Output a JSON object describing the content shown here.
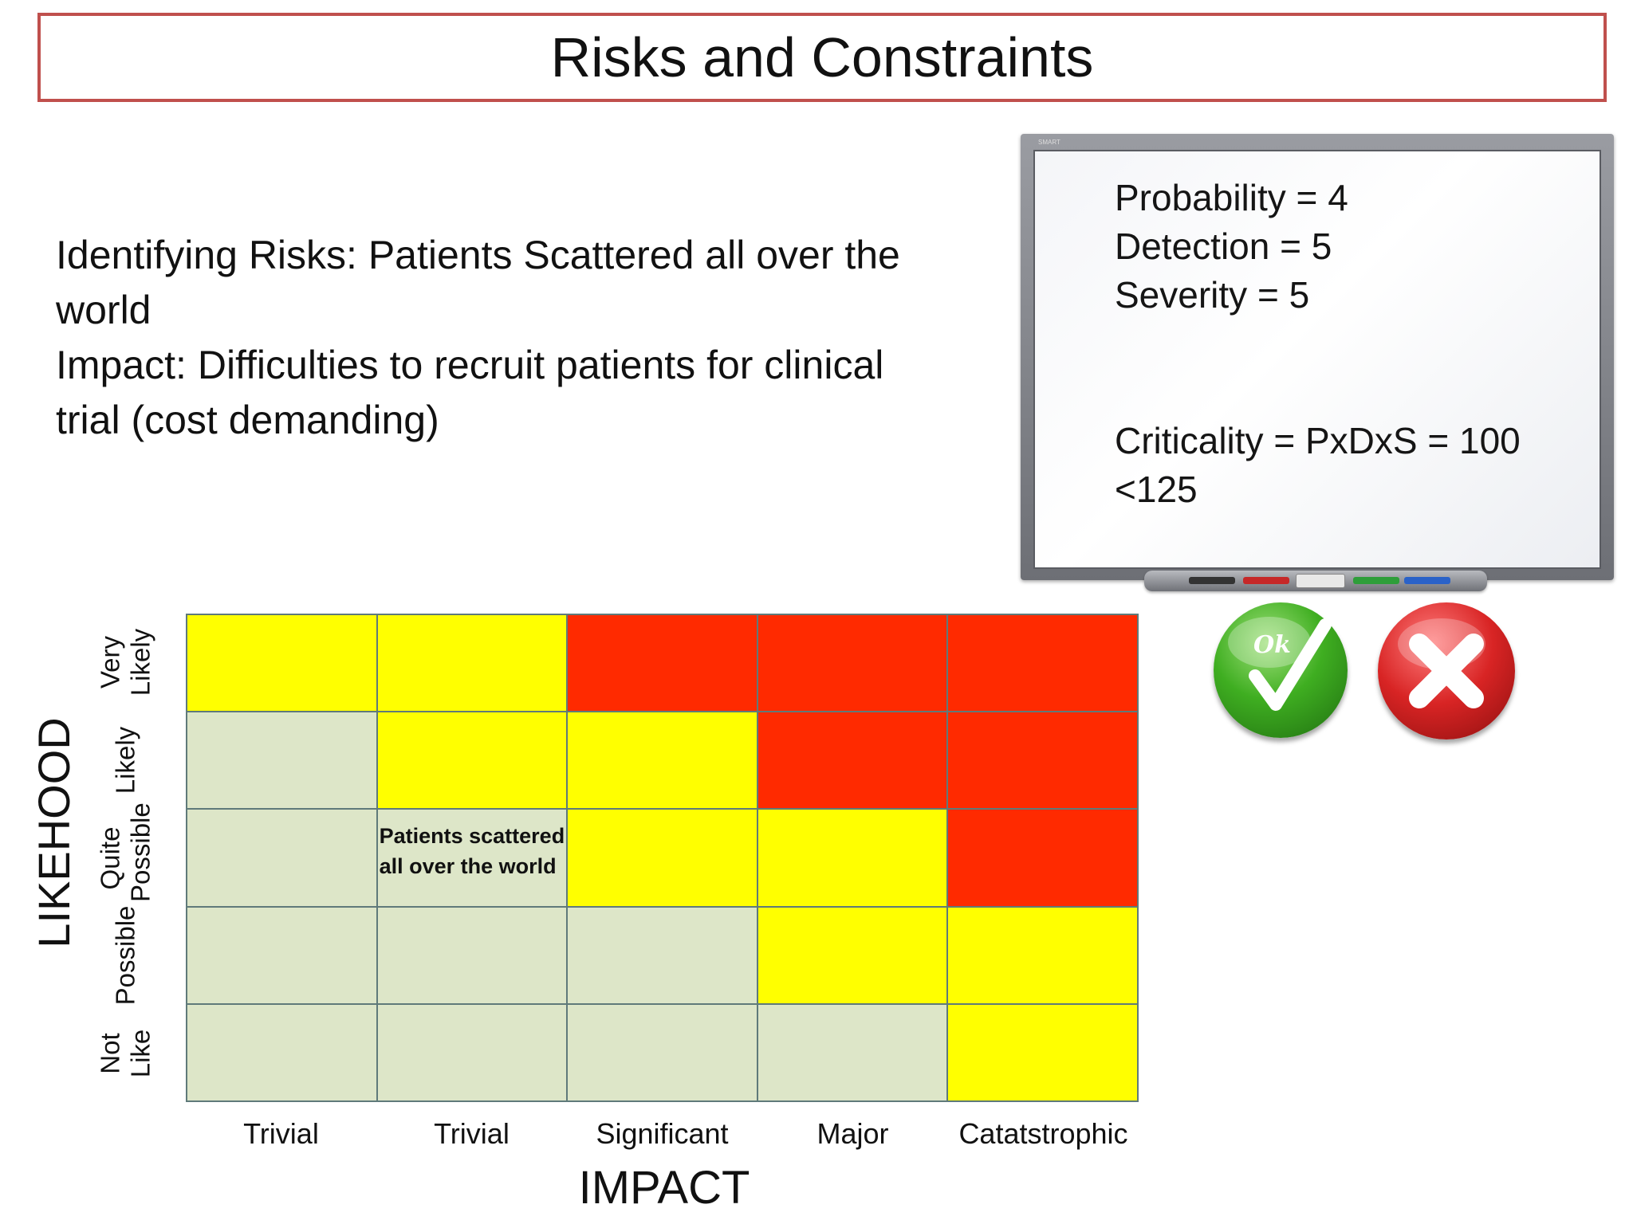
{
  "title": "Risks and Constraints",
  "risk_text": {
    "line1": "Identifying Risks: Patients Scattered all over the",
    "line2": "world",
    "line3": "Impact: Difficulties to recruit patients for clinical",
    "line4": "trial (cost demanding)"
  },
  "whiteboard": {
    "brand": "SMART",
    "probability": "Probability = 4",
    "detection": "Detection = 5",
    "severity": "Severity = 5",
    "criticality": "Criticality = PxDxS = 100",
    "threshold": "<125"
  },
  "buttons": {
    "ok_label": "Ok",
    "ok_icon": "ok-check-icon",
    "reject_icon": "red-x-icon"
  },
  "matrix": {
    "y_axis_label": "LIKEHOOD",
    "x_axis_label": "IMPACT",
    "row_labels": [
      "Very Likely",
      "Likely",
      "Quite Possible",
      "Possible",
      "Not Like"
    ],
    "column_labels": [
      "Trivial",
      "Trivial",
      "Significant",
      "Major",
      "Catatstrophic"
    ],
    "colors": {
      "low": "#dde6c8",
      "medium": "#ffff00",
      "high": "#ff2a00"
    },
    "cells": [
      [
        "medium",
        "medium",
        "high",
        "high",
        "high"
      ],
      [
        "low",
        "medium",
        "medium",
        "high",
        "high"
      ],
      [
        "low",
        "low",
        "medium",
        "medium",
        "high"
      ],
      [
        "low",
        "low",
        "low",
        "medium",
        "medium"
      ],
      [
        "low",
        "low",
        "low",
        "low",
        "medium"
      ]
    ],
    "annotation": {
      "row": 2,
      "col": 1,
      "text": "Patients scattered\nall over the world"
    }
  }
}
